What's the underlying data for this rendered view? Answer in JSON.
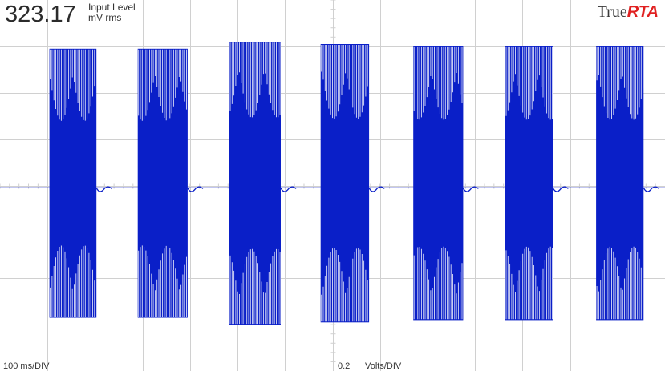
{
  "readout": {
    "value": "323.17",
    "label_line1": "Input Level",
    "label_line2": "mV rms"
  },
  "brand": {
    "part1": "True",
    "part2": "RTA",
    "color_part2": "#e02020"
  },
  "footer": {
    "time_div": "100  ms/DIV",
    "volts_div_value": "0.2",
    "volts_div_unit": "Volts/DIV"
  },
  "colors": {
    "trace": "#0a1fc8",
    "grid": "#d0d0d0",
    "background": "#ffffff"
  },
  "chart_data": {
    "type": "line",
    "title": "",
    "xlabel": "100  ms/DIV",
    "ylabel": "0.2  Volts/DIV",
    "x_unit": "ms",
    "y_unit": "V",
    "xlim": [
      0,
      1400
    ],
    "ylim": [
      -0.8,
      0.8
    ],
    "grid": true,
    "series": [
      {
        "bursts": [
          {
            "start_ms": 104,
            "end_ms": 203,
            "peak_v": 0.59
          },
          {
            "start_ms": 290,
            "end_ms": 395,
            "peak_v": 0.59
          },
          {
            "start_ms": 483,
            "end_ms": 591,
            "peak_v": 0.62
          },
          {
            "start_ms": 675,
            "end_ms": 777,
            "peak_v": 0.61
          },
          {
            "start_ms": 870,
            "end_ms": 975,
            "peak_v": 0.6
          },
          {
            "start_ms": 1064,
            "end_ms": 1164,
            "peak_v": 0.6
          },
          {
            "start_ms": 1255,
            "end_ms": 1355,
            "peak_v": 0.6
          }
        ],
        "baseline_v": -0.01
      }
    ]
  }
}
